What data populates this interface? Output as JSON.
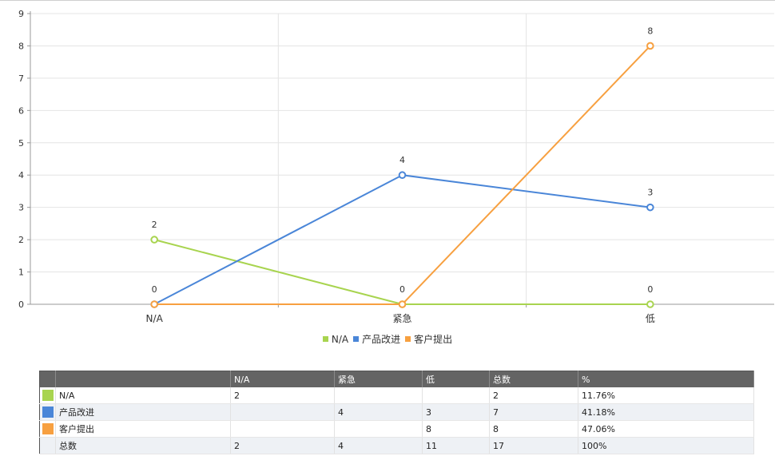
{
  "chart_data": {
    "type": "line",
    "categories": [
      "N/A",
      "紧急",
      "低"
    ],
    "series": [
      {
        "name": "N/A",
        "values": [
          2,
          0,
          0
        ],
        "color": "#a8d44f"
      },
      {
        "name": "产品改进",
        "values": [
          0,
          4,
          3
        ],
        "color": "#4a86d8"
      },
      {
        "name": "客户提出",
        "values": [
          0,
          0,
          8
        ],
        "color": "#f7a040"
      }
    ],
    "ylim": [
      0,
      9
    ],
    "yticks": [
      0,
      1,
      2,
      3,
      4,
      5,
      6,
      7,
      8,
      9
    ],
    "grid": true,
    "data_labels": true,
    "legend_position": "bottom"
  },
  "table": {
    "headers": [
      "",
      "",
      "N/A",
      "紧急",
      "低",
      "总数",
      "%"
    ],
    "rows": [
      {
        "color": "#a8d44f",
        "cells": [
          "N/A",
          "2",
          "",
          "",
          "2",
          "11.76%"
        ]
      },
      {
        "color": "#4a86d8",
        "cells": [
          "产品改进",
          "",
          "4",
          "3",
          "7",
          "41.18%"
        ]
      },
      {
        "color": "#f7a040",
        "cells": [
          "客户提出",
          "",
          "",
          "8",
          "8",
          "47.06%"
        ]
      },
      {
        "color": "",
        "cells": [
          "总数",
          "2",
          "4",
          "11",
          "17",
          "100%"
        ]
      }
    ]
  }
}
